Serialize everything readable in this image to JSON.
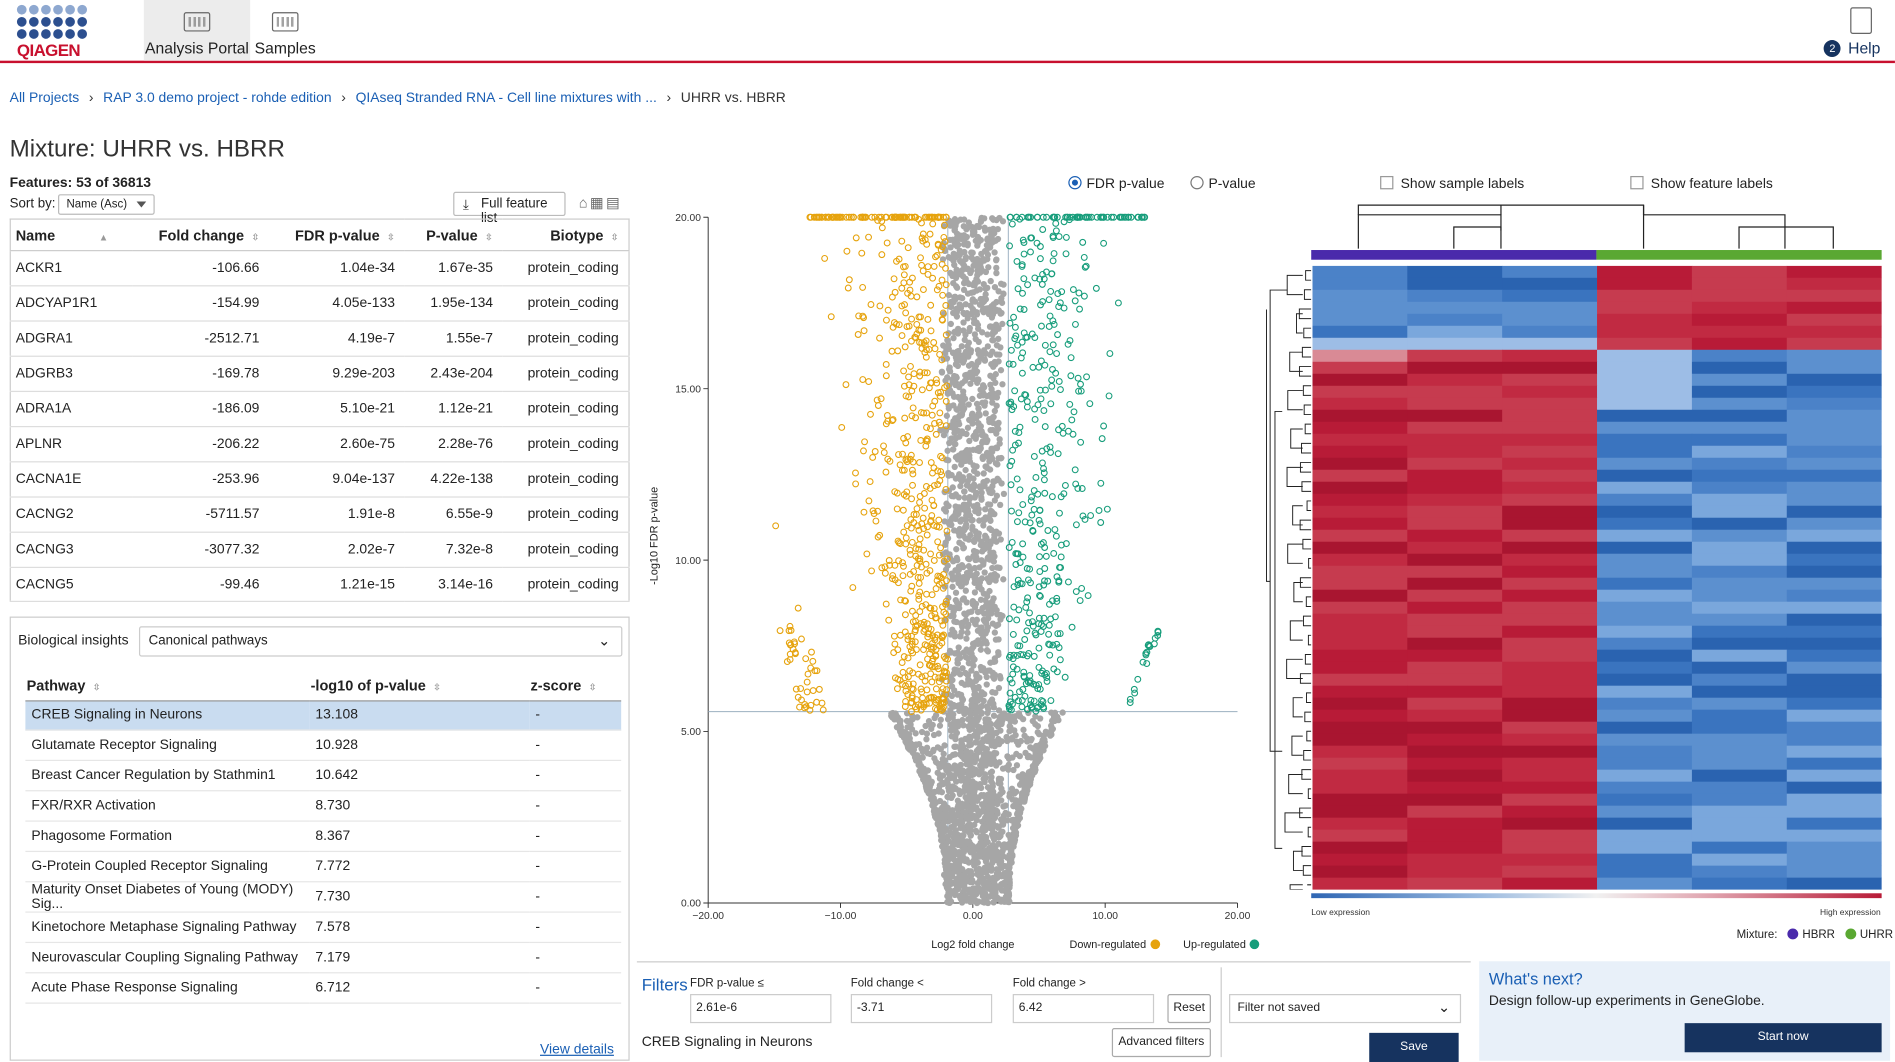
{
  "brand": {
    "logo_text": "QIAGEN"
  },
  "nav": {
    "tabs": [
      {
        "label": "Analysis Portal",
        "active": true
      },
      {
        "label": "Samples",
        "active": false
      }
    ],
    "help": {
      "label": "Help",
      "badge": "2"
    }
  },
  "breadcrumb": {
    "items": [
      "All Projects",
      "RAP 3.0 demo project - rohde edition",
      "QIAseq Stranded RNA - Cell line mixtures with ...",
      "UHRR vs. HBRR"
    ]
  },
  "page_title": "Mixture: UHRR vs. HBRR",
  "features": {
    "count_label": "Features: 53 of 36813",
    "sort_by_label": "Sort by:",
    "sort_value": "Name (Asc)",
    "full_list_label": "Full feature list",
    "columns": [
      "Name",
      "Fold change",
      "FDR p-value",
      "P-value",
      "Biotype"
    ],
    "rows": [
      [
        "ACKR1",
        "-106.66",
        "1.04e-34",
        "1.67e-35",
        "protein_coding"
      ],
      [
        "ADCYAP1R1",
        "-154.99",
        "4.05e-133",
        "1.95e-134",
        "protein_coding"
      ],
      [
        "ADGRA1",
        "-2512.71",
        "4.19e-7",
        "1.55e-7",
        "protein_coding"
      ],
      [
        "ADGRB3",
        "-169.78",
        "9.29e-203",
        "2.43e-204",
        "protein_coding"
      ],
      [
        "ADRA1A",
        "-186.09",
        "5.10e-21",
        "1.12e-21",
        "protein_coding"
      ],
      [
        "APLNR",
        "-206.22",
        "2.60e-75",
        "2.28e-76",
        "protein_coding"
      ],
      [
        "CACNA1E",
        "-253.96",
        "9.04e-137",
        "4.22e-138",
        "protein_coding"
      ],
      [
        "CACNG2",
        "-5711.57",
        "1.91e-8",
        "6.55e-9",
        "protein_coding"
      ],
      [
        "CACNG3",
        "-3077.32",
        "2.02e-7",
        "7.32e-8",
        "protein_coding"
      ],
      [
        "CACNG5",
        "-99.46",
        "1.21e-15",
        "3.14e-16",
        "protein_coding"
      ]
    ]
  },
  "bio": {
    "label": "Biological insights",
    "select_value": "Canonical pathways",
    "columns": [
      "Pathway",
      "-log10 of p-value",
      "z-score"
    ],
    "rows": [
      [
        "CREB Signaling in Neurons",
        "13.108",
        "-"
      ],
      [
        "Glutamate Receptor Signaling",
        "10.928",
        "-"
      ],
      [
        "Breast Cancer Regulation by Stathmin1",
        "10.642",
        "-"
      ],
      [
        "FXR/RXR Activation",
        "8.730",
        "-"
      ],
      [
        "Phagosome Formation",
        "8.367",
        "-"
      ],
      [
        "G-Protein Coupled Receptor Signaling",
        "7.772",
        "-"
      ],
      [
        "Maturity Onset Diabetes of Young (MODY) Sig...",
        "7.730",
        "-"
      ],
      [
        "Kinetochore Metaphase Signaling Pathway",
        "7.578",
        "-"
      ],
      [
        "Neurovascular Coupling Signaling Pathway",
        "7.179",
        "-"
      ],
      [
        "Acute Phase Response Signaling",
        "6.712",
        "-"
      ]
    ],
    "selected_index": 0,
    "view_details": "View details"
  },
  "volcano": {
    "radio_fdr": "FDR p-value",
    "radio_p": "P-value",
    "selected": "FDR p-value",
    "legend_down": "Down-regulated",
    "legend_up": "Up-regulated",
    "colors": {
      "down": "#e6a30d",
      "up": "#179d7b",
      "ns": "#a6a6a6"
    }
  },
  "chart_data": {
    "type": "scatter",
    "title": "",
    "xlabel": "Log2 fold change",
    "ylabel": "-Log10 FDR p-value",
    "xlim": [
      -20,
      20
    ],
    "ylim": [
      0,
      20
    ],
    "x_ticks": [
      "−20.00",
      "−10.00",
      "0.00",
      "10.00",
      "20.00"
    ],
    "y_ticks": [
      "0.00",
      "5.00",
      "10.00",
      "15.00",
      "20.00"
    ],
    "threshold_y": 5.58,
    "fold_thresholds": [
      -1.89,
      2.68
    ],
    "series": [
      {
        "name": "Down-regulated",
        "color": "#e6a30d"
      },
      {
        "name": "Up-regulated",
        "color": "#179d7b"
      }
    ],
    "highlighted_points": [
      {
        "x": -14.9,
        "y": 11.0
      },
      {
        "x": -13.2,
        "y": 8.6
      },
      {
        "x": -11.2,
        "y": 18.8
      },
      {
        "x": -10.7,
        "y": 17.1
      },
      {
        "x": 14.0,
        "y": 7.9
      },
      {
        "x": 11.0,
        "y": 17.5
      },
      {
        "x": 8.9,
        "y": 11.3
      }
    ]
  },
  "heatmap": {
    "show_sample_labels": "Show sample labels",
    "show_feature_labels": "Show feature labels",
    "low_label": "Low expression",
    "high_label": "High expression",
    "mixture_label": "Mixture:",
    "groups": [
      {
        "name": "HBRR",
        "color": "#4a2aab"
      },
      {
        "name": "UHRR",
        "color": "#5aa832"
      }
    ]
  },
  "filters": {
    "title": "Filters",
    "fdr_label": "FDR p-value ≤",
    "fdr_value": "2.61e-6",
    "fc_lt_label": "Fold change <",
    "fc_lt_value": "-3.71",
    "fc_gt_label": "Fold change >",
    "fc_gt_value": "6.42",
    "reset": "Reset",
    "advanced": "Advanced filters",
    "selected_pathway": "CREB Signaling in Neurons",
    "saved_state": "Filter not saved",
    "save": "Save"
  },
  "whats_next": {
    "title": "What's next?",
    "text": "Design follow-up experiments in GeneGlobe.",
    "button": "Start now"
  }
}
